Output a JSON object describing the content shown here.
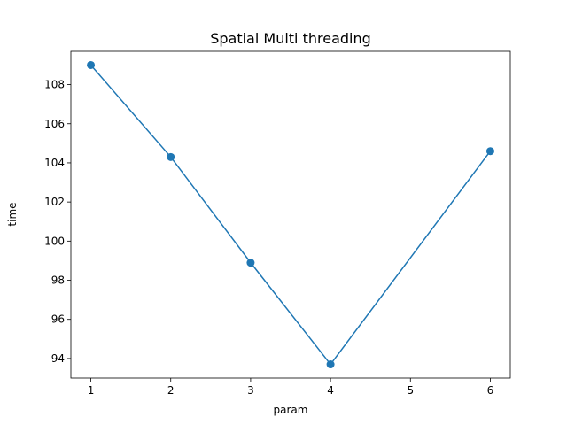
{
  "chart_data": {
    "type": "line",
    "title": "Spatial Multi threading",
    "xlabel": "param",
    "ylabel": "time",
    "x": [
      1,
      2,
      3,
      4,
      6
    ],
    "series": [
      {
        "values": [
          109.0,
          104.3,
          98.9,
          93.7,
          104.6
        ],
        "color": "#1f77b4",
        "marker": "circle"
      }
    ],
    "xlim": [
      0.75,
      6.25
    ],
    "ylim": [
      93.0,
      109.7
    ],
    "xticks": [
      1,
      2,
      3,
      4,
      5,
      6
    ],
    "yticks": [
      94,
      96,
      98,
      100,
      102,
      104,
      106,
      108
    ],
    "grid": false
  }
}
